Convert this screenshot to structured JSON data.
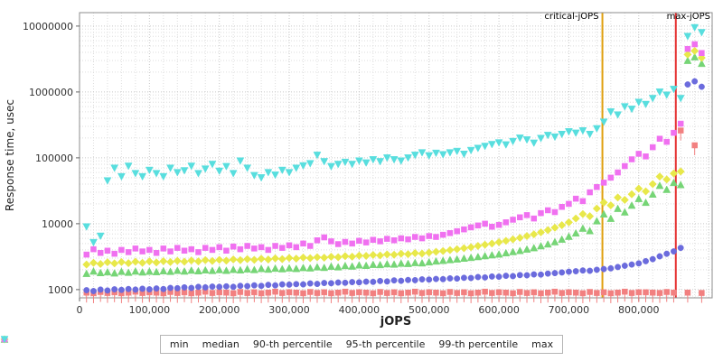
{
  "chart_data": {
    "type": "scatter",
    "xlabel": "jOPS",
    "ylabel": "Response time, usec",
    "y_scale": "log",
    "grid": true,
    "legend_position": "bottom",
    "xlim": [
      0,
      905000
    ],
    "ylim": [
      750,
      16000000
    ],
    "x_minor_step": 20000,
    "x_major_ticks": [
      0,
      100000,
      200000,
      300000,
      400000,
      500000,
      600000,
      700000,
      800000
    ],
    "x_tick_labels": [
      "0",
      "100,000",
      "200,000",
      "300,000",
      "400,000",
      "500,000",
      "600,000",
      "700,000",
      "800,000"
    ],
    "y_major_ticks": [
      1000,
      10000,
      100000,
      1000000,
      10000000
    ],
    "y_tick_labels": [
      "1000",
      "10000",
      "100000",
      "1000000",
      "10000000"
    ],
    "annotations": [
      {
        "label": "critical-jOPS",
        "x": 748000,
        "color": "#e0a010",
        "label_side": "left"
      },
      {
        "label": "max-jOPS",
        "x": 853000,
        "color": "#e53030",
        "label_side": "right"
      }
    ],
    "x": [
      10000,
      20000,
      30000,
      40000,
      50000,
      60000,
      70000,
      80000,
      90000,
      100000,
      110000,
      120000,
      130000,
      140000,
      150000,
      160000,
      170000,
      180000,
      190000,
      200000,
      210000,
      220000,
      230000,
      240000,
      250000,
      260000,
      270000,
      280000,
      290000,
      300000,
      310000,
      320000,
      330000,
      340000,
      350000,
      360000,
      370000,
      380000,
      390000,
      400000,
      410000,
      420000,
      430000,
      440000,
      450000,
      460000,
      470000,
      480000,
      490000,
      500000,
      510000,
      520000,
      530000,
      540000,
      550000,
      560000,
      570000,
      580000,
      590000,
      600000,
      610000,
      620000,
      630000,
      640000,
      650000,
      660000,
      670000,
      680000,
      690000,
      700000,
      710000,
      720000,
      730000,
      740000,
      750000,
      760000,
      770000,
      780000,
      790000,
      800000,
      810000,
      820000,
      830000,
      840000,
      850000,
      860000,
      870000,
      880000,
      890000
    ],
    "series": [
      {
        "name": "min",
        "marker": "square",
        "color": "#f28080",
        "stem": true,
        "values": [
          900,
          880,
          920,
          890,
          910,
          880,
          900,
          930,
          890,
          910,
          900,
          880,
          920,
          890,
          910,
          880,
          900,
          930,
          890,
          910,
          900,
          880,
          920,
          890,
          910,
          880,
          900,
          930,
          890,
          910,
          900,
          880,
          920,
          890,
          910,
          880,
          900,
          930,
          890,
          910,
          900,
          880,
          920,
          890,
          910,
          880,
          900,
          930,
          890,
          910,
          900,
          880,
          920,
          890,
          910,
          880,
          900,
          930,
          890,
          910,
          900,
          880,
          920,
          890,
          910,
          880,
          900,
          930,
          890,
          910,
          900,
          880,
          920,
          890,
          910,
          880,
          900,
          930,
          890,
          910,
          910,
          900,
          890,
          920,
          900,
          260000,
          900,
          155000,
          890
        ]
      },
      {
        "name": "median",
        "marker": "circle",
        "color": "#6b6bdd",
        "values": [
          980,
          950,
          1000,
          970,
          1010,
          990,
          1020,
          1000,
          1030,
          1010,
          1040,
          1020,
          1060,
          1050,
          1080,
          1060,
          1100,
          1080,
          1110,
          1100,
          1120,
          1100,
          1140,
          1130,
          1160,
          1140,
          1180,
          1160,
          1200,
          1190,
          1210,
          1200,
          1240,
          1220,
          1260,
          1250,
          1280,
          1270,
          1300,
          1290,
          1320,
          1310,
          1350,
          1330,
          1380,
          1360,
          1400,
          1390,
          1430,
          1420,
          1450,
          1440,
          1480,
          1470,
          1510,
          1500,
          1550,
          1530,
          1580,
          1570,
          1620,
          1600,
          1660,
          1650,
          1700,
          1690,
          1750,
          1780,
          1820,
          1870,
          1900,
          1950,
          1930,
          2000,
          2050,
          2100,
          2200,
          2300,
          2400,
          2500,
          2700,
          2900,
          3200,
          3500,
          3800,
          4300,
          1300000,
          1450000,
          1200000
        ]
      },
      {
        "name": "90-th percentile",
        "marker": "triangle-up",
        "color": "#76d576",
        "values": [
          1750,
          1900,
          1800,
          1850,
          1780,
          1880,
          1820,
          1900,
          1840,
          1890,
          1860,
          1920,
          1880,
          1950,
          1900,
          1960,
          1920,
          1980,
          1940,
          2000,
          1950,
          2020,
          1980,
          2050,
          2000,
          2080,
          2030,
          2100,
          2060,
          2120,
          2080,
          2150,
          2120,
          2200,
          2160,
          2250,
          2200,
          2300,
          2260,
          2350,
          2320,
          2400,
          2380,
          2450,
          2420,
          2500,
          2480,
          2560,
          2530,
          2620,
          2700,
          2760,
          2830,
          2900,
          2980,
          3060,
          3150,
          3250,
          3350,
          3450,
          3600,
          3750,
          3900,
          4100,
          4300,
          4600,
          4900,
          5300,
          5800,
          6400,
          7200,
          8500,
          7800,
          11000,
          14000,
          12000,
          17000,
          15000,
          19000,
          24000,
          21000,
          28000,
          38000,
          33000,
          42000,
          39000,
          3000000,
          3400000,
          2700000
        ]
      },
      {
        "name": "95-th percentile",
        "marker": "diamond",
        "color": "#e8e84a",
        "values": [
          2400,
          2550,
          2450,
          2600,
          2500,
          2620,
          2520,
          2650,
          2550,
          2680,
          2580,
          2700,
          2620,
          2730,
          2650,
          2760,
          2680,
          2800,
          2720,
          2830,
          2750,
          2870,
          2800,
          2900,
          2830,
          2940,
          2860,
          2980,
          2900,
          3020,
          2950,
          3060,
          3000,
          3100,
          3050,
          3150,
          3100,
          3220,
          3160,
          3280,
          3250,
          3350,
          3300,
          3420,
          3380,
          3500,
          3450,
          3580,
          3520,
          3650,
          3750,
          3850,
          3980,
          4100,
          4250,
          4400,
          4600,
          4800,
          5000,
          5250,
          5500,
          5800,
          6100,
          6500,
          6900,
          7400,
          8000,
          8700,
          9500,
          10500,
          12000,
          14000,
          13000,
          17000,
          21000,
          19000,
          25000,
          23000,
          28000,
          34000,
          31000,
          40000,
          52000,
          47000,
          58000,
          62000,
          3700000,
          4200000,
          3300000
        ]
      },
      {
        "name": "99-th percentile",
        "marker": "square",
        "color": "#f070f0",
        "values": [
          3400,
          4100,
          3600,
          3900,
          3500,
          4000,
          3700,
          4200,
          3800,
          4000,
          3600,
          4200,
          3800,
          4300,
          3900,
          4100,
          3700,
          4300,
          4000,
          4400,
          3900,
          4500,
          4100,
          4600,
          4200,
          4400,
          4000,
          4600,
          4300,
          4700,
          4400,
          5000,
          4600,
          5600,
          6200,
          5400,
          4900,
          5300,
          5000,
          5500,
          5200,
          5700,
          5400,
          5900,
          5600,
          6000,
          5800,
          6300,
          6000,
          6500,
          6300,
          6800,
          7200,
          7700,
          8200,
          8800,
          9400,
          10000,
          9000,
          9600,
          10500,
          11500,
          12500,
          13500,
          12000,
          14500,
          16000,
          15000,
          18000,
          20000,
          24000,
          22000,
          30000,
          36000,
          42000,
          50000,
          60000,
          75000,
          95000,
          115000,
          105000,
          145000,
          195000,
          175000,
          240000,
          330000,
          4500000,
          5300000,
          3900000
        ]
      },
      {
        "name": "max",
        "marker": "triangle-down",
        "color": "#58dede",
        "values": [
          9000,
          5200,
          6500,
          45000,
          70000,
          52000,
          75000,
          58000,
          52000,
          65000,
          58000,
          52000,
          70000,
          60000,
          64000,
          75000,
          58000,
          68000,
          80000,
          63000,
          74000,
          58000,
          90000,
          70000,
          54000,
          50000,
          60000,
          55000,
          65000,
          60000,
          70000,
          76000,
          82000,
          110000,
          88000,
          74000,
          80000,
          86000,
          80000,
          90000,
          84000,
          94000,
          88000,
          100000,
          94000,
          90000,
          100000,
          110000,
          120000,
          108000,
          118000,
          112000,
          120000,
          126000,
          114000,
          130000,
          140000,
          150000,
          160000,
          170000,
          158000,
          178000,
          200000,
          188000,
          168000,
          198000,
          220000,
          208000,
          228000,
          250000,
          238000,
          258000,
          228000,
          278000,
          350000,
          500000,
          450000,
          600000,
          550000,
          700000,
          650000,
          800000,
          1000000,
          900000,
          1100000,
          800000,
          7000000,
          9500000,
          8000000
        ]
      }
    ]
  }
}
